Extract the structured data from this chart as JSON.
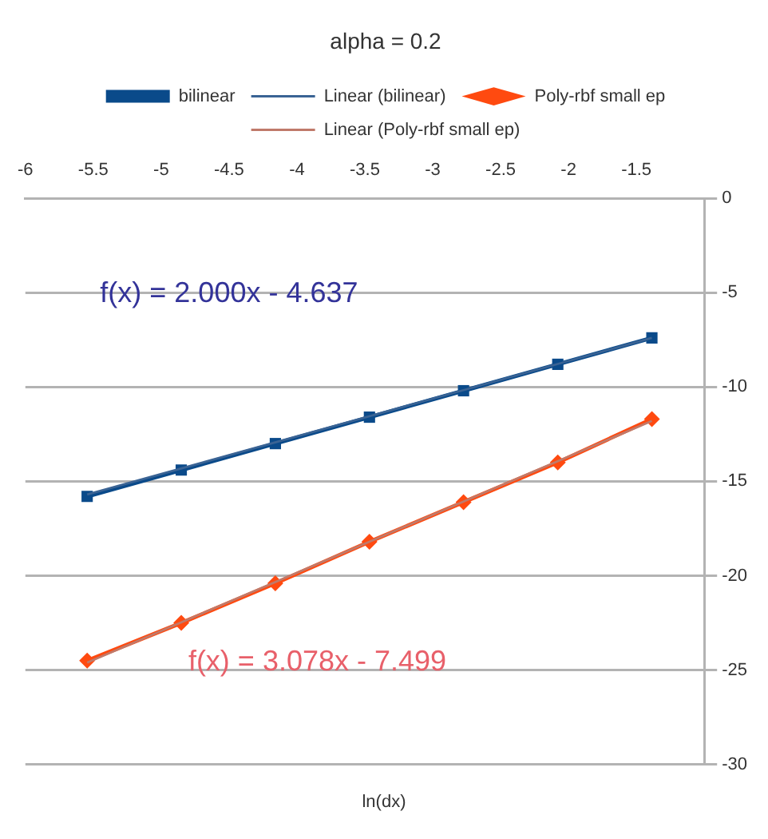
{
  "chart_data": {
    "type": "line",
    "title": "alpha = 0.2",
    "xlabel": "ln(dx)",
    "x": [
      -5.545,
      -4.852,
      -4.159,
      -3.466,
      -2.773,
      -2.079,
      -1.386
    ],
    "series": [
      {
        "name": "bilinear",
        "color": "#0a4a8a",
        "marker": "square",
        "values": [
          -15.8,
          -14.4,
          -13.0,
          -11.6,
          -10.2,
          -8.8,
          -7.4
        ]
      },
      {
        "name": "Linear (bilinear)",
        "type": "line",
        "color": "#3a6394",
        "marker": "none",
        "values": [
          -15.7,
          null,
          null,
          null,
          null,
          null,
          -7.4
        ]
      },
      {
        "name": "Poly-rbf small ep",
        "color": "#ff4a10",
        "marker": "diamond",
        "values": [
          -24.5,
          -22.5,
          -20.4,
          -18.2,
          -16.1,
          -14.0,
          -11.7
        ]
      },
      {
        "name": "Linear (Poly-rbf small ep)",
        "type": "line",
        "color": "#c07a6a",
        "marker": "none",
        "values": [
          -24.6,
          null,
          null,
          null,
          null,
          null,
          -11.8
        ]
      }
    ],
    "xlim": [
      -6,
      -1
    ],
    "xticks": [
      -6,
      -5.5,
      -5,
      -4.5,
      -4,
      -3.5,
      -3,
      -2.5,
      -2,
      -1.5,
      {
        "value": -1,
        "label": null
      }
    ],
    "ylim": [
      -30,
      0
    ],
    "yticks": [
      -30,
      -25,
      -20,
      -15,
      -10,
      -5,
      0
    ],
    "grid": "y",
    "legend": "top",
    "line_style": "solid",
    "annotations": [
      "f(x) = 2.000x - 4.637",
      "f(x) = 3.078x - 7.499"
    ]
  }
}
